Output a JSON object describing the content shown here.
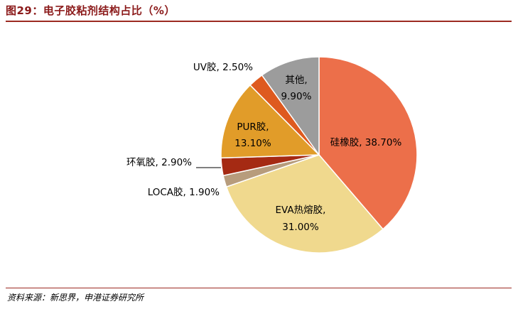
{
  "header": {
    "title": "图29：电子胶粘剂结构占比（%）"
  },
  "footer": {
    "source": "资料来源：新思界，申港证券研究所"
  },
  "chart_data": {
    "type": "pie",
    "title": "",
    "slices": [
      {
        "name": "硅橡胶",
        "value": 38.7,
        "label": "38.70%",
        "color": "#ec6f4a"
      },
      {
        "name": "EVA热熔胶",
        "value": 31.0,
        "label": "31.00%",
        "color": "#f0d98e"
      },
      {
        "name": "LOCA胶",
        "value": 1.9,
        "label": "1.90%",
        "color": "#b79c7c"
      },
      {
        "name": "环氧胶",
        "value": 2.9,
        "label": "2.90%",
        "color": "#a52a13"
      },
      {
        "name": "PUR胶",
        "value": 13.1,
        "label": "13.10%",
        "color": "#e19c29"
      },
      {
        "name": "UV胶",
        "value": 2.5,
        "label": "2.50%",
        "color": "#de5a1f"
      },
      {
        "name": "其他",
        "value": 9.9,
        "label": "9.90%",
        "color": "#9c9c9c"
      }
    ]
  }
}
